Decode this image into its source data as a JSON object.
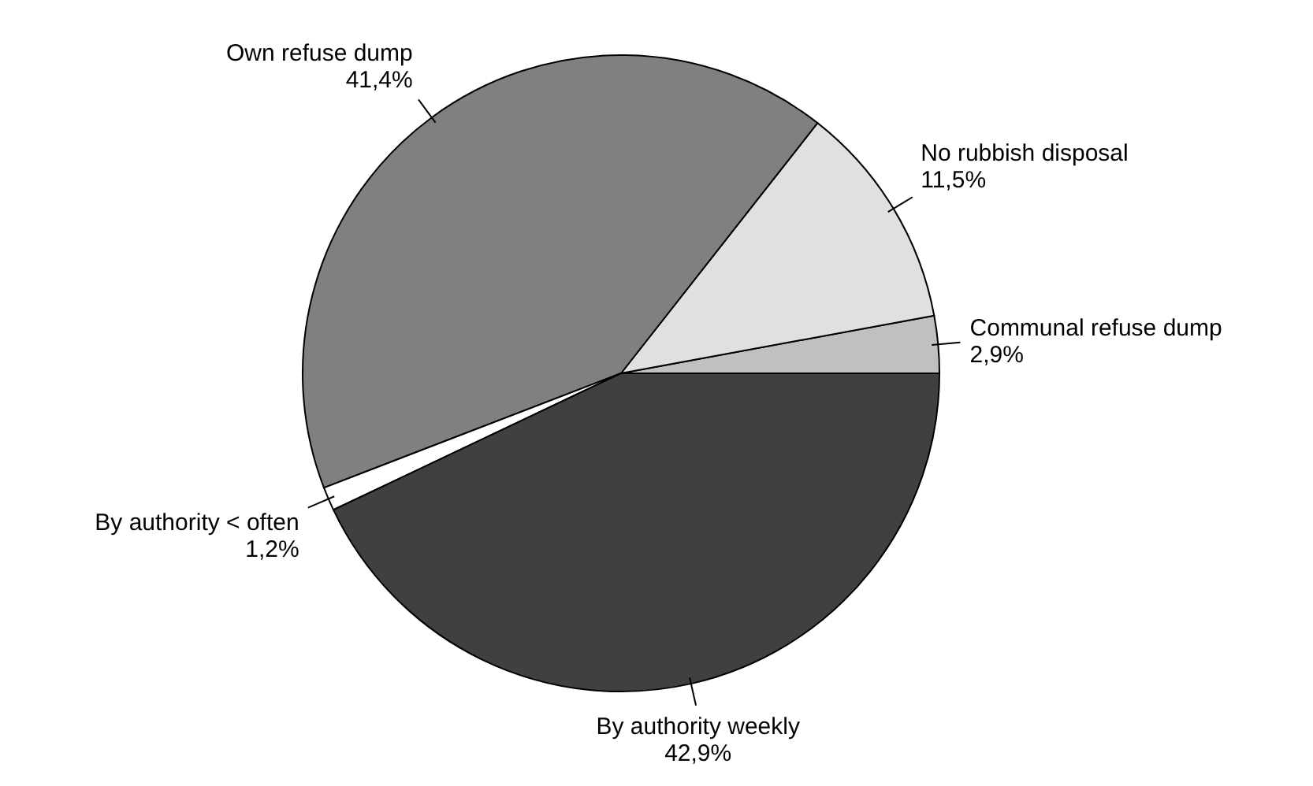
{
  "chart_data": {
    "type": "pie",
    "categories": [
      "Communal refuse dump",
      "No rubbish disposal",
      "Own refuse dump",
      "By authority < often",
      "By authority weekly"
    ],
    "values": [
      2.9,
      11.5,
      41.4,
      1.2,
      42.9
    ],
    "value_labels": [
      "2,9%",
      "11,5%",
      "41,4%",
      "1,2%",
      "42,9%"
    ],
    "colors": [
      "#c0c0c0",
      "#e0e0e0",
      "#808080",
      "#ffffff",
      "#404040"
    ]
  }
}
